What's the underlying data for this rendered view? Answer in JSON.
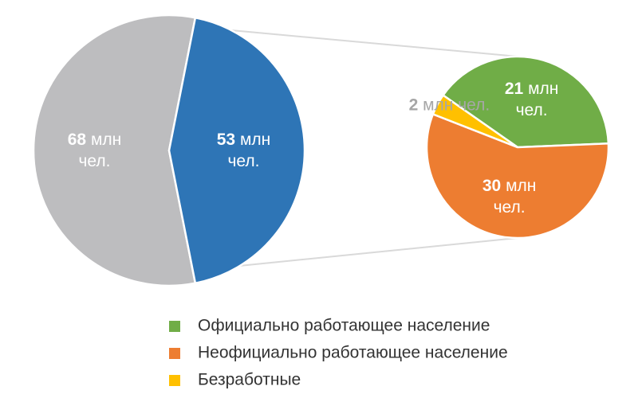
{
  "chart_data": [
    {
      "type": "pie",
      "values": [
        68,
        53
      ],
      "colors": [
        "#bdbdbf",
        "#2e75b6"
      ],
      "value_labels": [
        "68 млн чел.",
        "53 млн чел."
      ]
    },
    {
      "type": "pie",
      "categories": [
        "Официально работающее население",
        "Неофициально работающее население",
        "Безработные"
      ],
      "values": [
        21,
        30,
        2
      ],
      "colors": [
        "#70ad47",
        "#ed7d31",
        "#ffc000"
      ],
      "value_labels": [
        "21 млн чел.",
        "30 млн чел.",
        "2 млн чел."
      ]
    }
  ]
}
